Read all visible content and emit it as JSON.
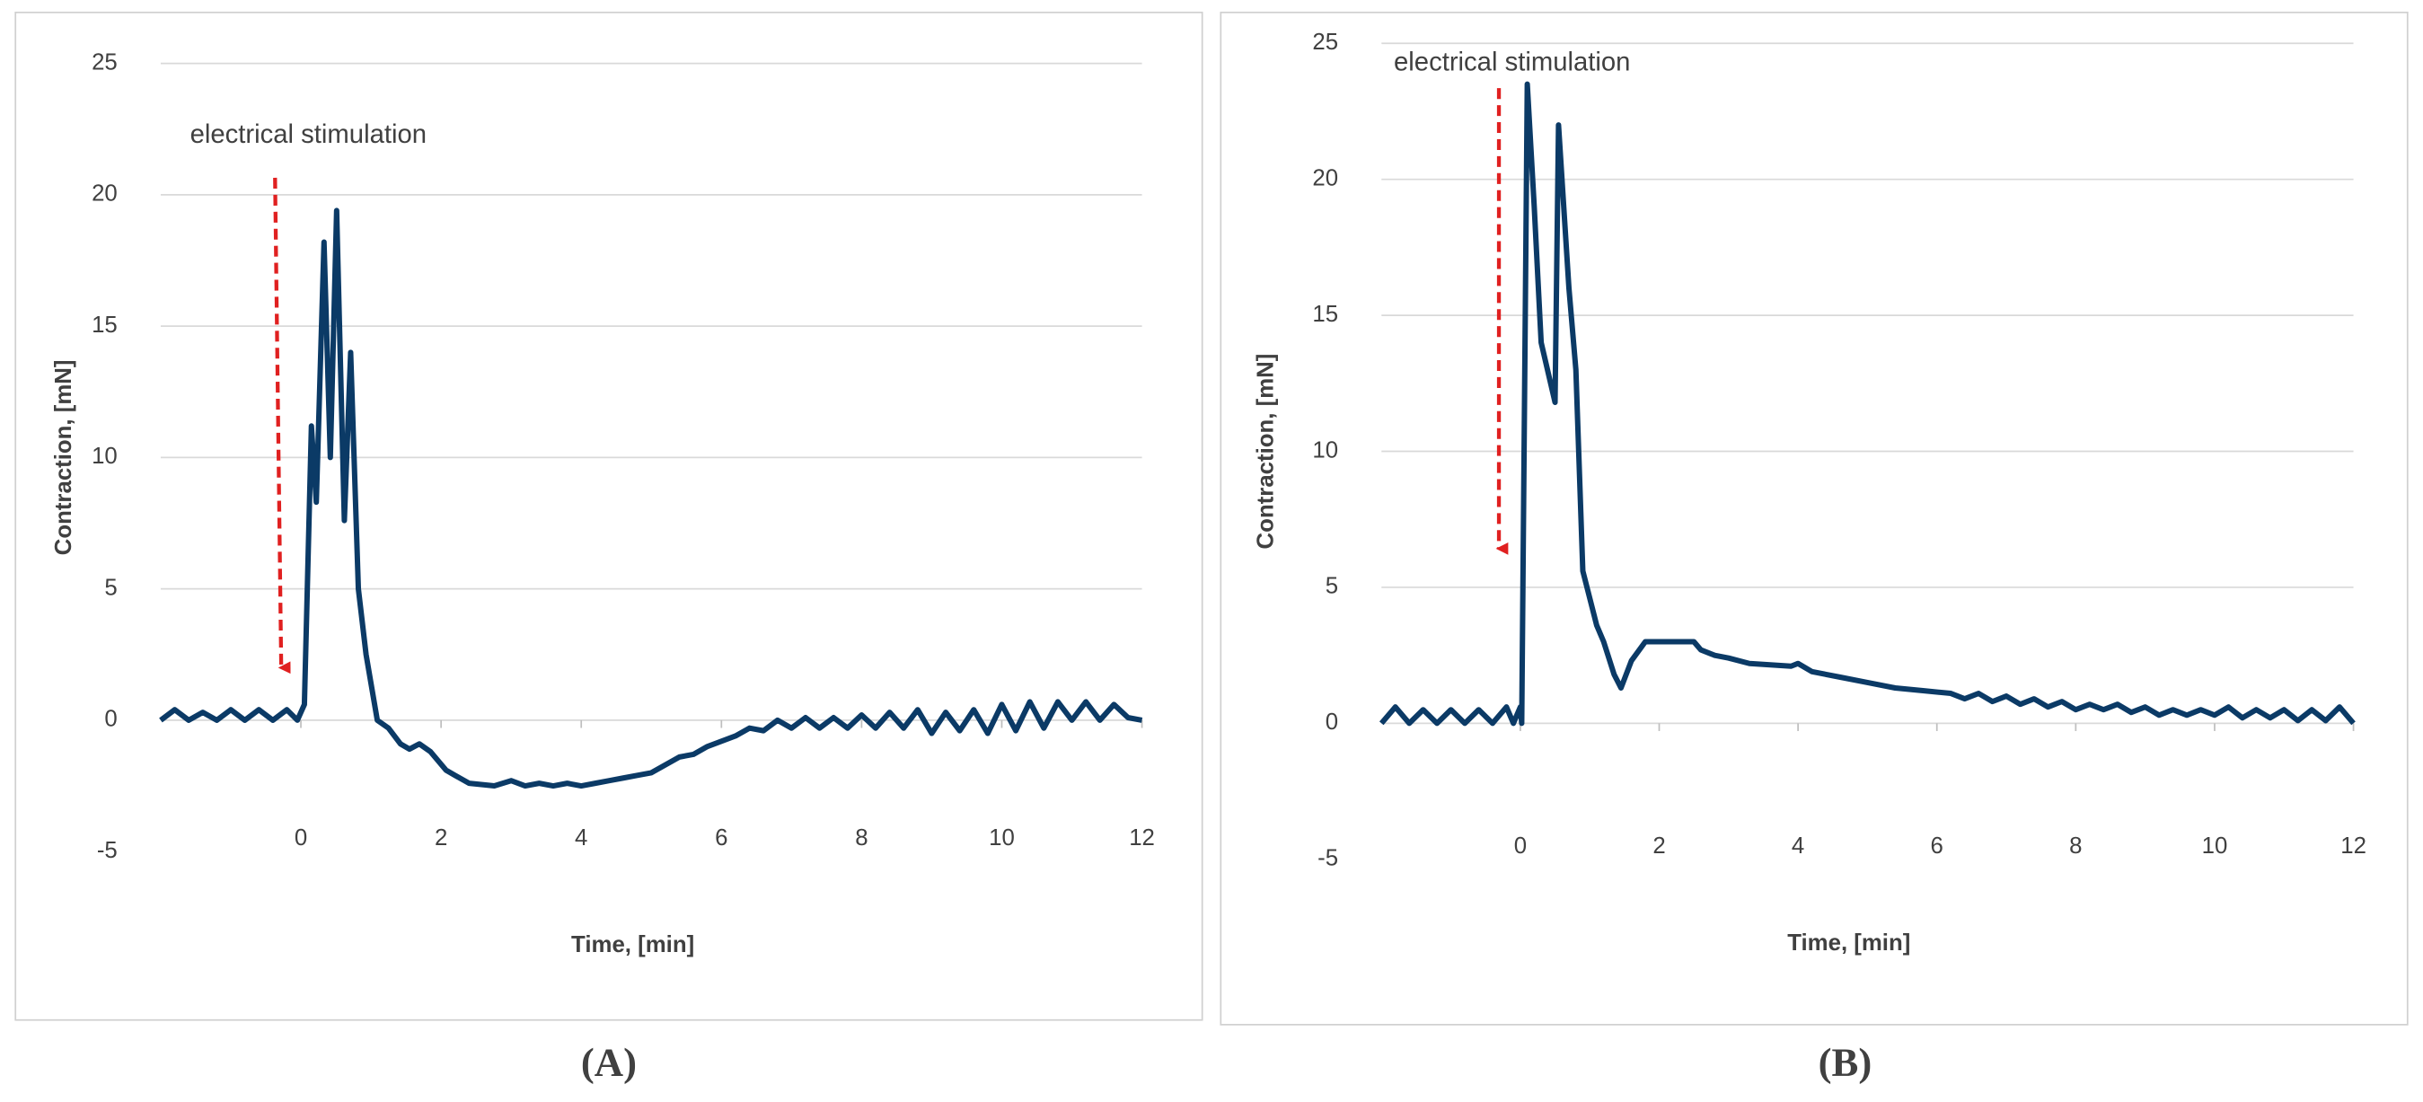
{
  "chart_data": [
    {
      "type": "line",
      "xlabel": "Time, [min]",
      "ylabel": "Contraction, [mN]",
      "annotation": "electrical stimulation",
      "caption": "(A)",
      "xlim": [
        -2,
        12
      ],
      "xticks": [
        0,
        2,
        4,
        6,
        8,
        10,
        12
      ],
      "ylim": [
        -5,
        25
      ],
      "yticks": [
        -5,
        0,
        5,
        10,
        15,
        20,
        25
      ],
      "grid": true,
      "color": "#0b3a66",
      "x": [
        -2,
        -1.8,
        -1.6,
        -1.4,
        -1.2,
        -1,
        -0.8,
        -0.6,
        -0.4,
        -0.2,
        -0.05,
        0.05,
        0.15,
        0.22,
        0.33,
        0.42,
        0.51,
        0.62,
        0.71,
        0.82,
        0.93,
        1.09,
        1.25,
        1.42,
        1.55,
        1.69,
        1.85,
        2.07,
        2.2,
        2.4,
        2.76,
        3.0,
        3.2,
        3.4,
        3.6,
        3.8,
        4.0,
        4.2,
        4.4,
        4.6,
        4.8,
        5.0,
        5.2,
        5.4,
        5.6,
        5.8,
        6.0,
        6.2,
        6.4,
        6.6,
        6.8,
        7.0,
        7.2,
        7.4,
        7.6,
        7.8,
        8.0,
        8.2,
        8.4,
        8.6,
        8.8,
        9.0,
        9.2,
        9.4,
        9.6,
        9.8,
        10.0,
        10.2,
        10.4,
        10.6,
        10.8,
        11.0,
        11.2,
        11.4,
        11.6,
        11.8,
        12
      ],
      "values": [
        0,
        0.4,
        0,
        0.3,
        0,
        0.4,
        0,
        0.4,
        0,
        0.4,
        0,
        0.6,
        11.2,
        8.3,
        18.2,
        10,
        19.4,
        7.6,
        14,
        5,
        2.5,
        0,
        -0.3,
        -0.9,
        -1.1,
        -0.9,
        -1.2,
        -1.9,
        -2.1,
        -2.4,
        -2.5,
        -2.3,
        -2.5,
        -2.4,
        -2.5,
        -2.4,
        -2.5,
        -2.4,
        -2.3,
        -2.2,
        -2.1,
        -2.0,
        -1.7,
        -1.4,
        -1.3,
        -1.0,
        -0.8,
        -0.6,
        -0.3,
        -0.4,
        0,
        -0.3,
        0.1,
        -0.3,
        0.1,
        -0.3,
        0.2,
        -0.3,
        0.3,
        -0.3,
        0.4,
        -0.5,
        0.3,
        -0.4,
        0.4,
        -0.5,
        0.6,
        -0.4,
        0.7,
        -0.3,
        0.7,
        0,
        0.7,
        0,
        0.6,
        0.1,
        0
      ]
    },
    {
      "type": "line",
      "xlabel": "Time, [min]",
      "ylabel": "Contraction, [mN]",
      "annotation": "electrical stimulation",
      "caption": "(B)",
      "xlim": [
        -2,
        12
      ],
      "xticks": [
        0,
        2,
        4,
        6,
        8,
        10,
        12
      ],
      "ylim": [
        -5,
        25
      ],
      "yticks": [
        -5,
        0,
        5,
        10,
        15,
        20,
        25
      ],
      "grid": true,
      "color": "#0b3a66",
      "x": [
        -2,
        -1.8,
        -1.6,
        -1.4,
        -1.2,
        -1,
        -0.8,
        -0.6,
        -0.4,
        -0.2,
        -0.1,
        0,
        0.02,
        0.1,
        0.2,
        0.3,
        0.5,
        0.55,
        0.7,
        0.8,
        0.9,
        1.1,
        1.2,
        1.35,
        1.45,
        1.6,
        1.8,
        2.5,
        2.6,
        2.8,
        3.0,
        3.3,
        3.9,
        4.0,
        4.2,
        4.6,
        5.0,
        5.4,
        5.8,
        6.2,
        6.4,
        6.6,
        6.8,
        7.0,
        7.2,
        7.4,
        7.6,
        7.8,
        8.0,
        8.2,
        8.4,
        8.6,
        8.8,
        9.0,
        9.2,
        9.4,
        9.6,
        9.8,
        10.0,
        10.2,
        10.4,
        10.6,
        10.8,
        11.0,
        11.2,
        11.4,
        11.6,
        11.8,
        12
      ],
      "values": [
        0,
        0.6,
        0,
        0.5,
        0,
        0.5,
        0,
        0.5,
        0,
        0.6,
        0,
        0.6,
        0,
        23.5,
        19,
        14,
        11.8,
        22,
        16,
        13,
        5.6,
        3.6,
        3,
        1.8,
        1.3,
        2.3,
        3,
        3,
        2.7,
        2.5,
        2.4,
        2.2,
        2.1,
        2.2,
        1.9,
        1.7,
        1.5,
        1.3,
        1.2,
        1.1,
        0.9,
        1.1,
        0.8,
        1.0,
        0.7,
        0.9,
        0.6,
        0.8,
        0.5,
        0.7,
        0.5,
        0.7,
        0.4,
        0.6,
        0.3,
        0.5,
        0.3,
        0.5,
        0.3,
        0.6,
        0.2,
        0.5,
        0.2,
        0.5,
        0.1,
        0.5,
        0.1,
        0.6,
        0
      ]
    }
  ]
}
